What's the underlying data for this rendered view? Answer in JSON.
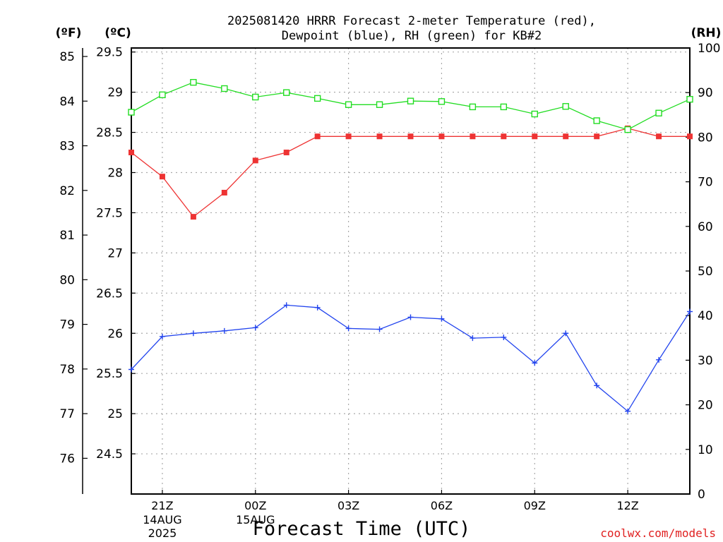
{
  "chart_data": {
    "type": "line",
    "title": [
      "2025081420 HRRR Forecast 2-meter Temperature (red),",
      "Dewpoint (blue), RH (green) for KB#2"
    ],
    "xlabel": "Forecast Time (UTC)",
    "credit": "coolwx.com/models",
    "units": {
      "fahrenheit": "(ºF)",
      "celsius": "(ºC)",
      "rh": "(RH)"
    },
    "x_ticks": [
      {
        "index": 1,
        "label": "21Z",
        "sub": [
          "14AUG",
          "2025"
        ]
      },
      {
        "index": 4,
        "label": "00Z",
        "sub": [
          "15AUG"
        ]
      },
      {
        "index": 7,
        "label": "03Z",
        "sub": []
      },
      {
        "index": 10,
        "label": "06Z",
        "sub": []
      },
      {
        "index": 13,
        "label": "09Z",
        "sub": []
      },
      {
        "index": 16,
        "label": "12Z",
        "sub": []
      }
    ],
    "x_count": 19,
    "celsius_axis": {
      "min": 24.0,
      "max": 29.55,
      "ticks": [
        24.5,
        25,
        25.5,
        26,
        26.5,
        27,
        27.5,
        28,
        28.5,
        29,
        29.5
      ],
      "labels": [
        "24.5",
        "25",
        "25.5",
        "26",
        "26.5",
        "27",
        "27.5",
        "28",
        "28.5",
        "29",
        "29.5"
      ]
    },
    "fahrenheit_axis": {
      "ticks": [
        76,
        77,
        78,
        79,
        80,
        81,
        82,
        83,
        84,
        85
      ],
      "labels": [
        "76",
        "77",
        "78",
        "79",
        "80",
        "81",
        "82",
        "83",
        "84",
        "85"
      ]
    },
    "rh_axis": {
      "min": 0,
      "max": 100,
      "ticks": [
        0,
        10,
        20,
        30,
        40,
        50,
        60,
        70,
        80,
        90,
        100
      ],
      "labels": [
        "0",
        "10",
        "20",
        "30",
        "40",
        "50",
        "60",
        "70",
        "80",
        "90",
        "100"
      ]
    },
    "series": [
      {
        "name": "Temperature",
        "axis": "celsius",
        "color": "#ee3333",
        "marker": "filled-square",
        "values": [
          28.25,
          27.95,
          27.45,
          27.75,
          28.15,
          28.25,
          28.45,
          28.45,
          28.45,
          28.45,
          28.45,
          28.45,
          28.45,
          28.45,
          28.45,
          28.45,
          28.55,
          28.45,
          28.45
        ]
      },
      {
        "name": "Dewpoint",
        "axis": "celsius",
        "color": "#2244ee",
        "marker": "plus",
        "values": [
          25.55,
          25.96,
          26.0,
          26.03,
          26.07,
          26.35,
          26.32,
          26.06,
          26.05,
          26.2,
          26.18,
          25.94,
          25.95,
          25.63,
          26.0,
          25.35,
          25.03,
          25.67,
          26.27
        ]
      },
      {
        "name": "RH",
        "axis": "rh",
        "color": "#22dd22",
        "marker": "open-square",
        "values": [
          85.6,
          89.5,
          92.3,
          90.9,
          89.0,
          90.0,
          88.7,
          87.3,
          87.3,
          88.1,
          88.0,
          86.8,
          86.8,
          85.2,
          86.9,
          83.7,
          81.7,
          85.4,
          88.5
        ]
      }
    ]
  }
}
